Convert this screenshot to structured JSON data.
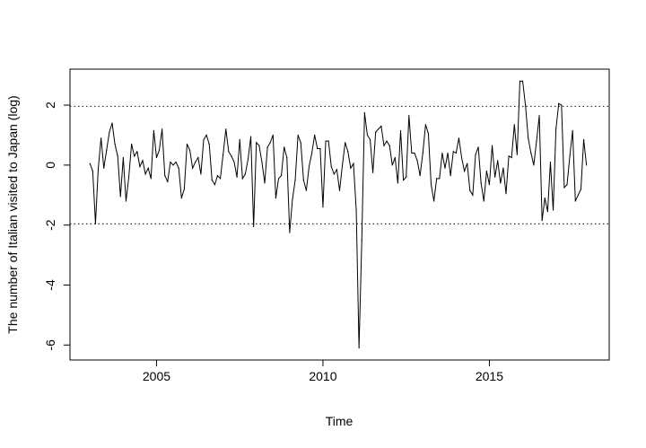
{
  "chart_data": {
    "type": "line",
    "title": "",
    "xlabel": "Time",
    "ylabel": "The number of Italian visited to Japan (log)",
    "xlim": [
      2002.4,
      2018.6
    ],
    "ylim": [
      -6.5,
      3.2
    ],
    "x_ticks": [
      2005,
      2010,
      2015
    ],
    "x_tick_labels": [
      "2005",
      "2010",
      "2015"
    ],
    "y_ticks": [
      -6,
      -4,
      -2,
      0,
      2
    ],
    "y_tick_labels": [
      "-6",
      "-4",
      "-2",
      "0",
      "2"
    ],
    "reference_lines": [
      {
        "y": 1.96,
        "style": "dotted"
      },
      {
        "y": -1.96,
        "style": "dotted"
      }
    ],
    "grid": false,
    "series": [
      {
        "x_start": 2003.0,
        "x_step": 0.0833333,
        "values": [
          0.05,
          -0.2,
          -1.95,
          -0.1,
          0.9,
          -0.1,
          0.5,
          1.1,
          1.4,
          0.7,
          0.3,
          -1.05,
          0.25,
          -1.2,
          -0.4,
          0.7,
          0.3,
          0.45,
          -0.05,
          0.15,
          -0.3,
          -0.1,
          -0.45,
          1.15,
          0.25,
          0.5,
          1.2,
          -0.35,
          -0.55,
          0.1,
          0.0,
          0.1,
          -0.1,
          -1.1,
          -0.8,
          0.7,
          0.5,
          -0.1,
          0.1,
          0.25,
          -0.3,
          0.85,
          1.0,
          0.7,
          -0.5,
          -0.65,
          -0.35,
          -0.45,
          0.35,
          1.2,
          0.45,
          0.3,
          0.1,
          -0.4,
          0.85,
          -0.45,
          -0.3,
          0.2,
          0.95,
          -2.05,
          0.75,
          0.65,
          0.1,
          -0.6,
          0.6,
          0.75,
          1.0,
          -1.1,
          -0.45,
          -0.35,
          0.6,
          0.25,
          -2.25,
          -1.15,
          -0.5,
          1.0,
          0.75,
          -0.5,
          -0.85,
          -0.05,
          0.4,
          1.0,
          0.55,
          0.55,
          -1.4,
          0.8,
          0.8,
          -0.05,
          -0.3,
          -0.15,
          -0.85,
          0.0,
          0.75,
          0.45,
          -0.1,
          0.05,
          -1.5,
          -6.1,
          -2.5,
          1.75,
          1.0,
          0.85,
          -0.25,
          1.1,
          1.2,
          1.3,
          0.65,
          0.8,
          0.65,
          0.0,
          0.25,
          -0.6,
          1.15,
          -0.5,
          -0.4,
          1.65,
          0.4,
          0.4,
          0.15,
          -0.35,
          0.4,
          1.35,
          1.05,
          -0.65,
          -1.2,
          -0.45,
          -0.45,
          0.4,
          -0.1,
          0.4,
          -0.35,
          0.45,
          0.4,
          0.9,
          0.25,
          -0.2,
          0.05,
          -0.85,
          -1.0,
          0.35,
          0.6,
          -0.6,
          -1.2,
          -0.2,
          -0.65,
          0.65,
          -0.4,
          0.15,
          -0.6,
          -0.1,
          -0.95,
          0.3,
          0.25,
          1.35,
          0.35,
          2.8,
          2.8,
          2.0,
          0.9,
          0.4,
          0.0,
          0.8,
          1.65,
          -1.85,
          -1.1,
          -1.55,
          0.1,
          -1.5,
          1.2,
          2.05,
          2.0,
          -0.75,
          -0.65,
          0.3,
          1.15,
          -1.2,
          -1.0,
          -0.8,
          0.85,
          0.0
        ]
      }
    ]
  }
}
